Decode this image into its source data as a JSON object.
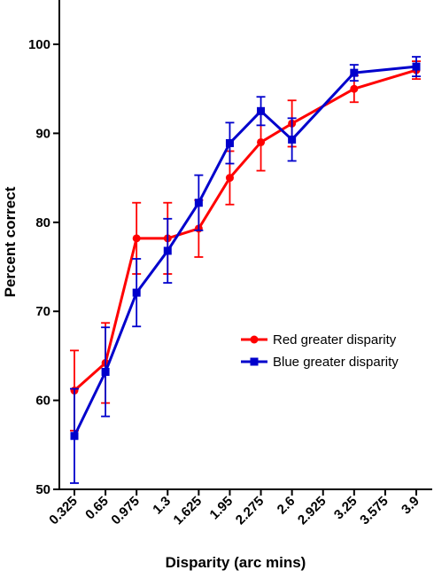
{
  "chart_data": {
    "type": "line",
    "title": "",
    "xlabel": "Disparity (arc mins)",
    "ylabel": "Percent correct",
    "categories": [
      "0.325",
      "0.65",
      "0.975",
      "1.3",
      "1.625",
      "1.95",
      "2.275",
      "2.6",
      "2.925",
      "3.25",
      "3.575",
      "3.9"
    ],
    "ylim": [
      50,
      105
    ],
    "yticks": [
      50,
      60,
      70,
      80,
      90,
      100
    ],
    "grid": false,
    "legend_position": "center-right",
    "series": [
      {
        "name": "Red greater disparity",
        "color": "#ff0000",
        "marker": "circle",
        "x": [
          0.325,
          0.65,
          0.975,
          1.3,
          1.625,
          1.95,
          2.275,
          2.6,
          3.25,
          3.9
        ],
        "values": [
          61.1,
          64.2,
          78.2,
          78.2,
          79.3,
          85.0,
          89.0,
          91.1,
          95.0,
          97.1
        ],
        "errors": [
          4.5,
          4.5,
          4.0,
          4.0,
          3.2,
          3.0,
          3.2,
          2.6,
          1.5,
          1.0
        ]
      },
      {
        "name": "Blue greater disparity",
        "color": "#0000cc",
        "marker": "square",
        "x": [
          0.325,
          0.65,
          0.975,
          1.3,
          1.625,
          1.95,
          2.275,
          2.6,
          3.25,
          3.9
        ],
        "values": [
          56.0,
          63.2,
          72.1,
          76.8,
          82.2,
          88.9,
          92.5,
          89.3,
          96.8,
          97.5
        ],
        "errors": [
          5.3,
          5.0,
          3.8,
          3.6,
          3.1,
          2.3,
          1.6,
          2.4,
          0.9,
          1.1
        ]
      }
    ]
  }
}
